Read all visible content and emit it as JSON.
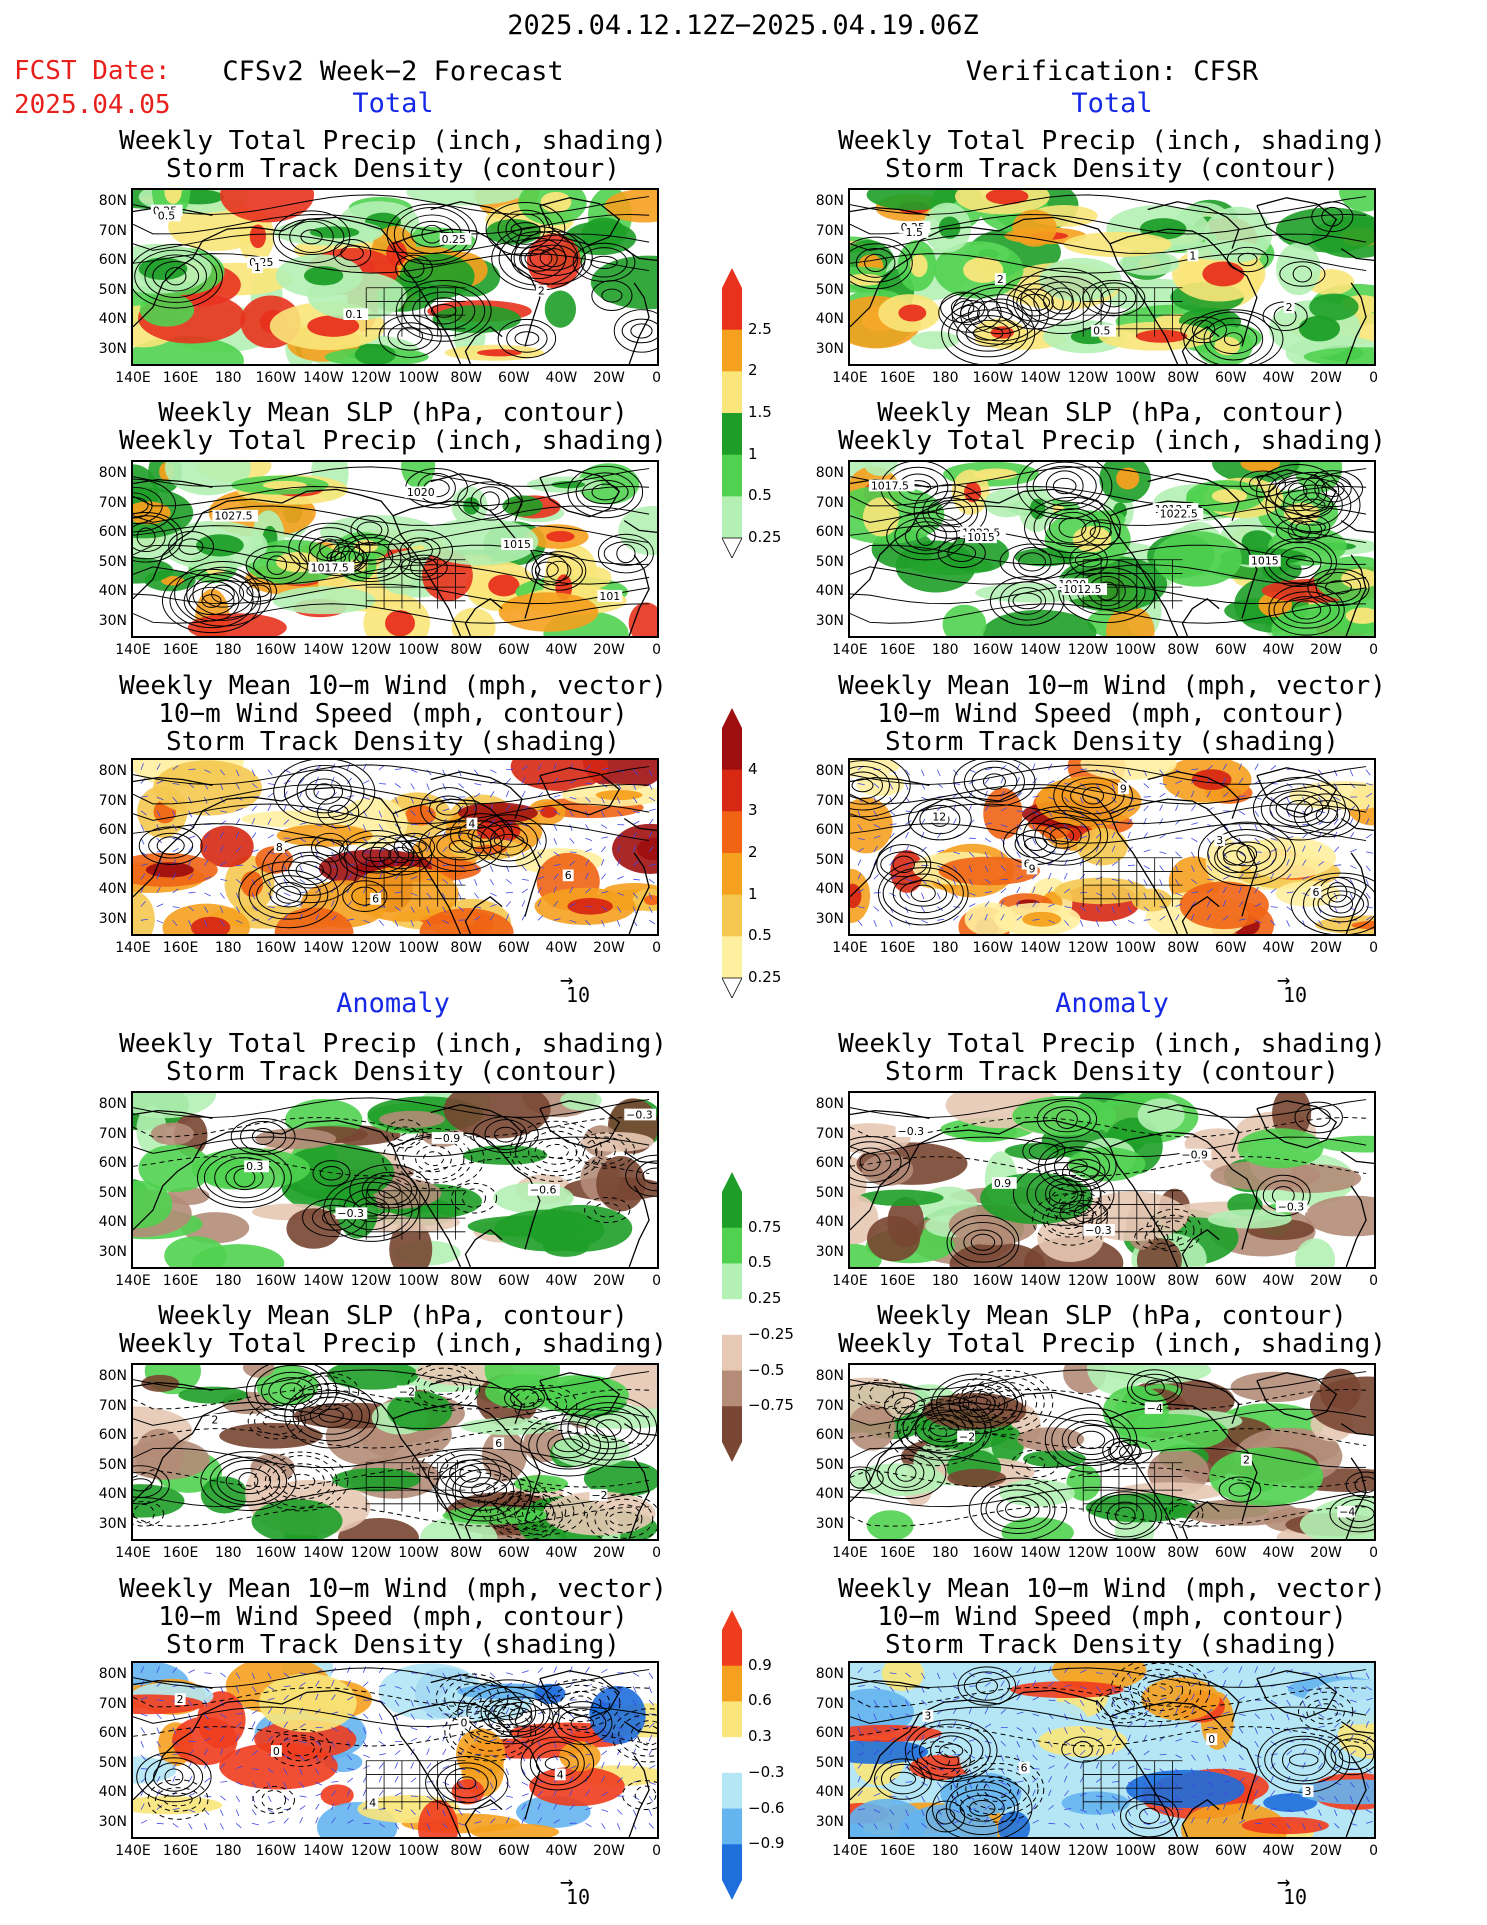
{
  "header": {
    "date_range": "2025.04.12.12Z−2025.04.19.06Z",
    "fcst_label": "FCST Date:",
    "fcst_date": "2025.04.05",
    "left_title": "CFSv2 Week−2 Forecast",
    "right_title": "Verification: CFSR",
    "total_label": "Total",
    "anomaly_label": "Anomaly"
  },
  "panel_titles": {
    "precip_storm": [
      "Weekly Total Precip (inch, shading)",
      "Storm Track Density (contour)"
    ],
    "slp_precip": [
      "Weekly Mean SLP (hPa, contour)",
      "Weekly Total Precip (inch, shading)"
    ],
    "wind_storm": [
      "Weekly Mean 10−m Wind (mph, vector)",
      "10−m Wind Speed (mph, contour)",
      "Storm Track Density (shading)"
    ]
  },
  "axes": {
    "lat_labels": [
      "80N",
      "70N",
      "60N",
      "50N",
      "40N",
      "30N"
    ],
    "lon_labels": [
      "140E",
      "160E",
      "180",
      "160W",
      "140W",
      "120W",
      "100W",
      "80W",
      "60W",
      "40W",
      "20W",
      "0"
    ]
  },
  "vector_ref": "10",
  "colorbars": {
    "precip_total": {
      "labels": [
        "2.5",
        "2",
        "1.5",
        "1",
        "0.5",
        "0.25"
      ],
      "colors": [
        "#e8321e",
        "#f5a01e",
        "#fae67a",
        "#1e9e28",
        "#50d250",
        "#b4f0b4"
      ]
    },
    "storm_total": {
      "labels": [
        "4",
        "3",
        "2",
        "1",
        "0.5",
        "0.25"
      ],
      "colors": [
        "#a00f0f",
        "#d72814",
        "#f06414",
        "#f5a01e",
        "#f5c850",
        "#fff0a0"
      ]
    },
    "precip_anom": {
      "labels": [
        "0.75",
        "0.5",
        "0.25",
        "−0.25",
        "−0.5",
        "−0.75"
      ],
      "colors": [
        "#1e9e28",
        "#50d250",
        "#b4f0b4",
        "#ffffff",
        "#e6c8b4",
        "#b48c78",
        "#784632"
      ]
    },
    "storm_anom": {
      "labels": [
        "0.9",
        "0.6",
        "0.3",
        "−0.3",
        "−0.6",
        "−0.9"
      ],
      "colors": [
        "#f03c1e",
        "#f5a01e",
        "#fae67a",
        "#ffffff",
        "#b4e6f5",
        "#64b4f0",
        "#1e6edc"
      ]
    }
  },
  "contour_labels": {
    "fc_precip_total": [
      "0.25",
      "0.25",
      "0.1",
      "0.25",
      "2",
      "0.5",
      "1"
    ],
    "vr_precip_total": [
      "0.25",
      "2",
      "0.5",
      "1",
      "2",
      "1.5"
    ],
    "fc_slp_total": [
      "1027.5",
      "1017.5",
      "1020",
      "1015",
      "101"
    ],
    "vr_slp_total": [
      "1022.5",
      "1020",
      "1012.5",
      "1015",
      "1017.5",
      "1015",
      "1012.5",
      "1022.5"
    ],
    "fc_wind_total": [
      "8",
      "6",
      "4",
      "6"
    ],
    "vr_wind_total": [
      "6",
      "9",
      "3",
      "6",
      "12",
      "9"
    ],
    "fc_precip_anom": [
      "−0.3",
      "−0.9",
      "−0.6",
      "−0.3",
      "0.3"
    ],
    "vr_precip_anom": [
      "−0.3",
      "−0.9",
      "−0.3",
      "−0.3",
      "0.9"
    ],
    "fc_slp_anom": [
      "−2",
      "6",
      "−2",
      "2"
    ],
    "vr_slp_anom": [
      "−4",
      "2",
      "−4",
      "−2"
    ],
    "fc_wind_anom": [
      "0",
      "4",
      "2",
      "0",
      "4"
    ],
    "vr_wind_anom": [
      "0",
      "3",
      "3",
      "6"
    ]
  }
}
